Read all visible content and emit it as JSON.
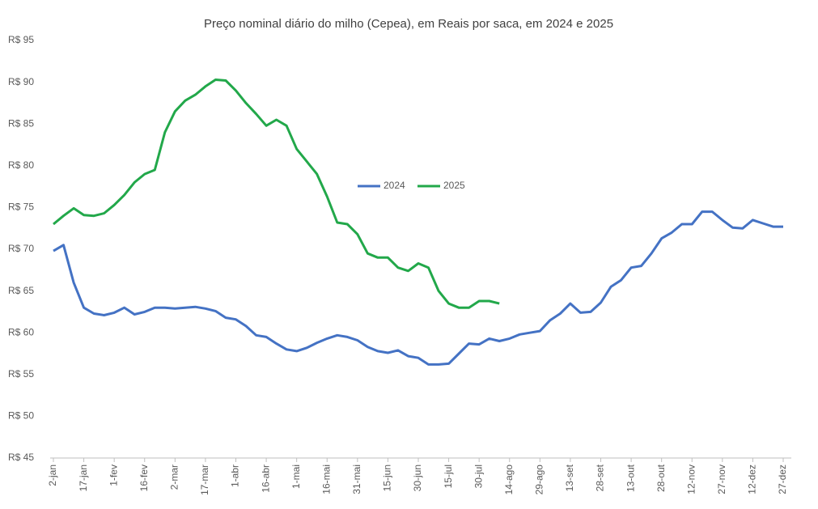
{
  "chart_data": {
    "type": "line",
    "title": "Preço nominal diário do milho (Cepea), em Reais por saca, em 2024 e 2025",
    "categories": [
      "2-jan",
      null,
      null,
      "17-jan",
      null,
      null,
      "1-fev",
      null,
      null,
      "16-fev",
      null,
      null,
      "2-mar",
      null,
      null,
      "17-mar",
      null,
      null,
      "1-abr",
      null,
      null,
      "16-abr",
      null,
      null,
      "1-mai",
      null,
      null,
      "16-mai",
      null,
      null,
      "31-mai",
      null,
      null,
      "15-jun",
      null,
      null,
      "30-jun",
      null,
      null,
      "15-jul",
      null,
      null,
      "30-jul",
      null,
      null,
      "14-ago",
      null,
      null,
      "29-ago",
      null,
      null,
      "13-set",
      null,
      null,
      "28-set",
      null,
      null,
      "13-out",
      null,
      null,
      "28-out",
      null,
      null,
      "12-nov",
      null,
      null,
      "27-nov",
      null,
      null,
      "12-dez",
      null,
      null,
      "27-dez"
    ],
    "series": [
      {
        "name": "2024",
        "color": "#4472c4",
        "values": [
          69.8,
          70.5,
          66,
          63,
          62.3,
          62.1,
          62.4,
          63,
          62.2,
          62.5,
          63,
          63,
          62.9,
          63,
          63.1,
          62.9,
          62.6,
          61.8,
          61.6,
          60.8,
          59.7,
          59.5,
          58.7,
          58,
          57.8,
          58.2,
          58.8,
          59.3,
          59.7,
          59.5,
          59.1,
          58.3,
          57.8,
          57.6,
          57.9,
          57.2,
          57,
          56.2,
          56.2,
          56.3,
          57.5,
          58.7,
          58.6,
          59.3,
          59,
          59.3,
          59.8,
          60,
          60.2,
          61.5,
          62.3,
          63.5,
          62.4,
          62.5,
          63.6,
          65.5,
          66.3,
          67.8,
          68,
          69.5,
          71.3,
          72,
          73,
          73,
          74.5,
          74.5,
          73.5,
          72.6,
          72.5,
          73.5,
          73.1,
          72.7,
          72.7
        ]
      },
      {
        "name": "2025",
        "color": "#22a84a",
        "values": [
          73,
          74,
          74.9,
          74.1,
          74,
          74.3,
          75.3,
          76.5,
          78,
          79,
          79.5,
          84,
          86.5,
          87.8,
          88.5,
          89.5,
          90.3,
          90.2,
          89,
          87.5,
          86.2,
          84.8,
          85.5,
          84.8,
          82,
          80.5,
          79,
          76.3,
          73.2,
          73,
          71.8,
          69.5,
          69,
          69,
          67.8,
          67.4,
          68.3,
          67.8,
          65,
          63.5,
          63,
          63,
          63.8,
          63.8,
          63.5,
          null,
          null,
          null,
          null,
          null,
          null,
          null,
          null,
          null,
          null,
          null,
          null,
          null,
          null,
          null,
          null,
          null,
          null,
          null,
          null,
          null,
          null,
          null,
          null,
          null,
          null,
          null,
          null
        ]
      }
    ],
    "ylim": [
      45,
      95
    ],
    "yticks": [
      {
        "value": 45,
        "label": "R$ 45"
      },
      {
        "value": 50,
        "label": "R$ 50"
      },
      {
        "value": 55,
        "label": "R$ 55"
      },
      {
        "value": 60,
        "label": "R$ 60"
      },
      {
        "value": 65,
        "label": "R$ 65"
      },
      {
        "value": 70,
        "label": "R$ 70"
      },
      {
        "value": 75,
        "label": "R$ 75"
      },
      {
        "value": 80,
        "label": "R$ 80"
      },
      {
        "value": 85,
        "label": "R$ 85"
      },
      {
        "value": 90,
        "label": "R$ 90"
      },
      {
        "value": 95,
        "label": "R$ 95"
      }
    ],
    "grid": false,
    "legend": "center"
  }
}
